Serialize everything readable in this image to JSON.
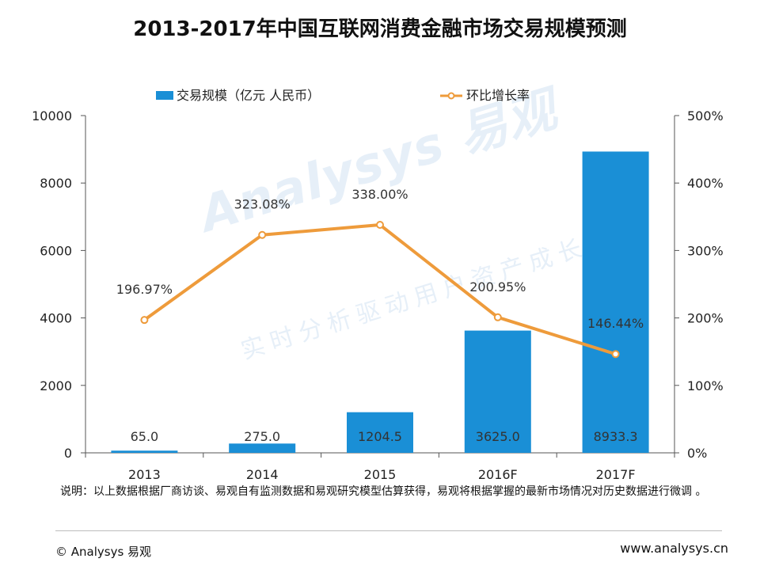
{
  "title": "2013-2017年中国互联网消费金融市场交易规模预测",
  "note": "说明：以上数据根据厂商访谈、易观自有监测数据和易观研究模型估算获得，易观将根据掌握的最新市场情况对历史数据进行微调 。",
  "footer": {
    "copyright": "© Analysys 易观",
    "website": "www.analysys.cn"
  },
  "watermark": {
    "main": "Analysys 易观",
    "sub": "实时分析驱动用户资产成长"
  },
  "colors": {
    "bar": "#1a8fd6",
    "line": "#ee9b3b",
    "marker_fill": "#ffffff",
    "axis": "#555555",
    "text": "#222222"
  },
  "chart_data": {
    "type": "bar+line",
    "categories": [
      "2013",
      "2014",
      "2015",
      "2016F",
      "2017F"
    ],
    "series": [
      {
        "name": "交易规模（亿元 人民币）",
        "type": "bar",
        "axis": "left",
        "values": [
          65.0,
          275.0,
          1204.5,
          3625.0,
          8933.3
        ],
        "labels": [
          "65.0",
          "275.0",
          "1204.5",
          "3625.0",
          "8933.3"
        ]
      },
      {
        "name": "环比增长率",
        "type": "line",
        "axis": "right",
        "values": [
          196.97,
          323.08,
          338.0,
          200.95,
          146.44
        ],
        "labels": [
          "196.97%",
          "323.08%",
          "338.00%",
          "200.95%",
          "146.44%"
        ]
      }
    ],
    "y_left": {
      "min": 0,
      "max": 10000,
      "ticks": [
        0,
        2000,
        4000,
        6000,
        8000,
        10000
      ],
      "tick_labels": [
        "0",
        "2000",
        "4000",
        "6000",
        "8000",
        "10000"
      ]
    },
    "y_right": {
      "min": 0,
      "max": 500,
      "ticks": [
        0,
        100,
        200,
        300,
        400,
        500
      ],
      "tick_labels": [
        "0%",
        "100%",
        "200%",
        "300%",
        "400%",
        "500%"
      ]
    },
    "grid": false,
    "legend": "top"
  }
}
